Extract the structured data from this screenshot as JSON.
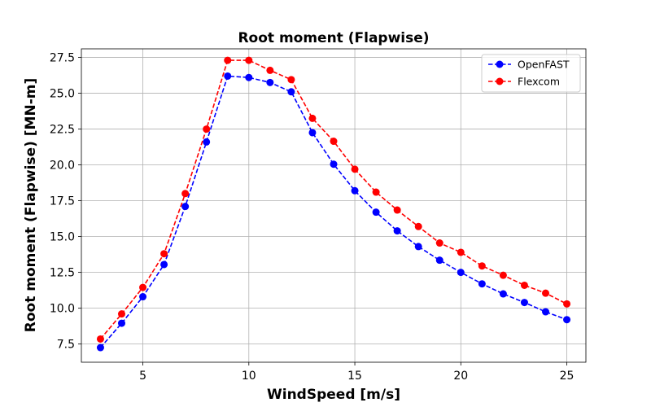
{
  "chart_data": {
    "type": "line",
    "title": "Root moment (Flapwise)",
    "xlabel": "WindSpeed [m/s]",
    "ylabel": "Root moment (Flapwise) [MN-m]",
    "xlim": [
      2.1,
      25.9
    ],
    "ylim": [
      6.23,
      28.1
    ],
    "xticks": [
      5,
      10,
      15,
      20,
      25
    ],
    "yticks": [
      7.5,
      10.0,
      12.5,
      15.0,
      17.5,
      20.0,
      22.5,
      25.0,
      27.5
    ],
    "xtick_labels": [
      "5",
      "10",
      "15",
      "20",
      "25"
    ],
    "ytick_labels": [
      "7.5",
      "10.0",
      "12.5",
      "15.0",
      "17.5",
      "20.0",
      "22.5",
      "25.0",
      "27.5"
    ],
    "grid": true,
    "legend_position": "top-right",
    "x": [
      3,
      4,
      5,
      6,
      7,
      8,
      9,
      10,
      11,
      12,
      13,
      14,
      15,
      16,
      17,
      18,
      19,
      20,
      21,
      22,
      23,
      24,
      25
    ],
    "series": [
      {
        "name": "OpenFAST",
        "color": "#0000ff",
        "line_style": "dashed",
        "marker": "circle",
        "values": [
          7.25,
          8.95,
          10.8,
          13.05,
          17.1,
          21.6,
          26.2,
          26.1,
          25.75,
          25.1,
          22.25,
          20.05,
          18.2,
          16.7,
          15.4,
          14.3,
          13.35,
          12.5,
          11.7,
          11.0,
          10.4,
          9.75,
          9.2
        ]
      },
      {
        "name": "Flexcom",
        "color": "#ff0000",
        "line_style": "dashed",
        "marker": "circle",
        "values": [
          7.85,
          9.6,
          11.45,
          13.8,
          18.0,
          22.5,
          27.3,
          27.3,
          26.6,
          25.95,
          23.25,
          21.65,
          19.7,
          18.1,
          16.85,
          15.7,
          14.55,
          13.9,
          12.95,
          12.3,
          11.6,
          11.05,
          10.3
        ]
      }
    ]
  }
}
